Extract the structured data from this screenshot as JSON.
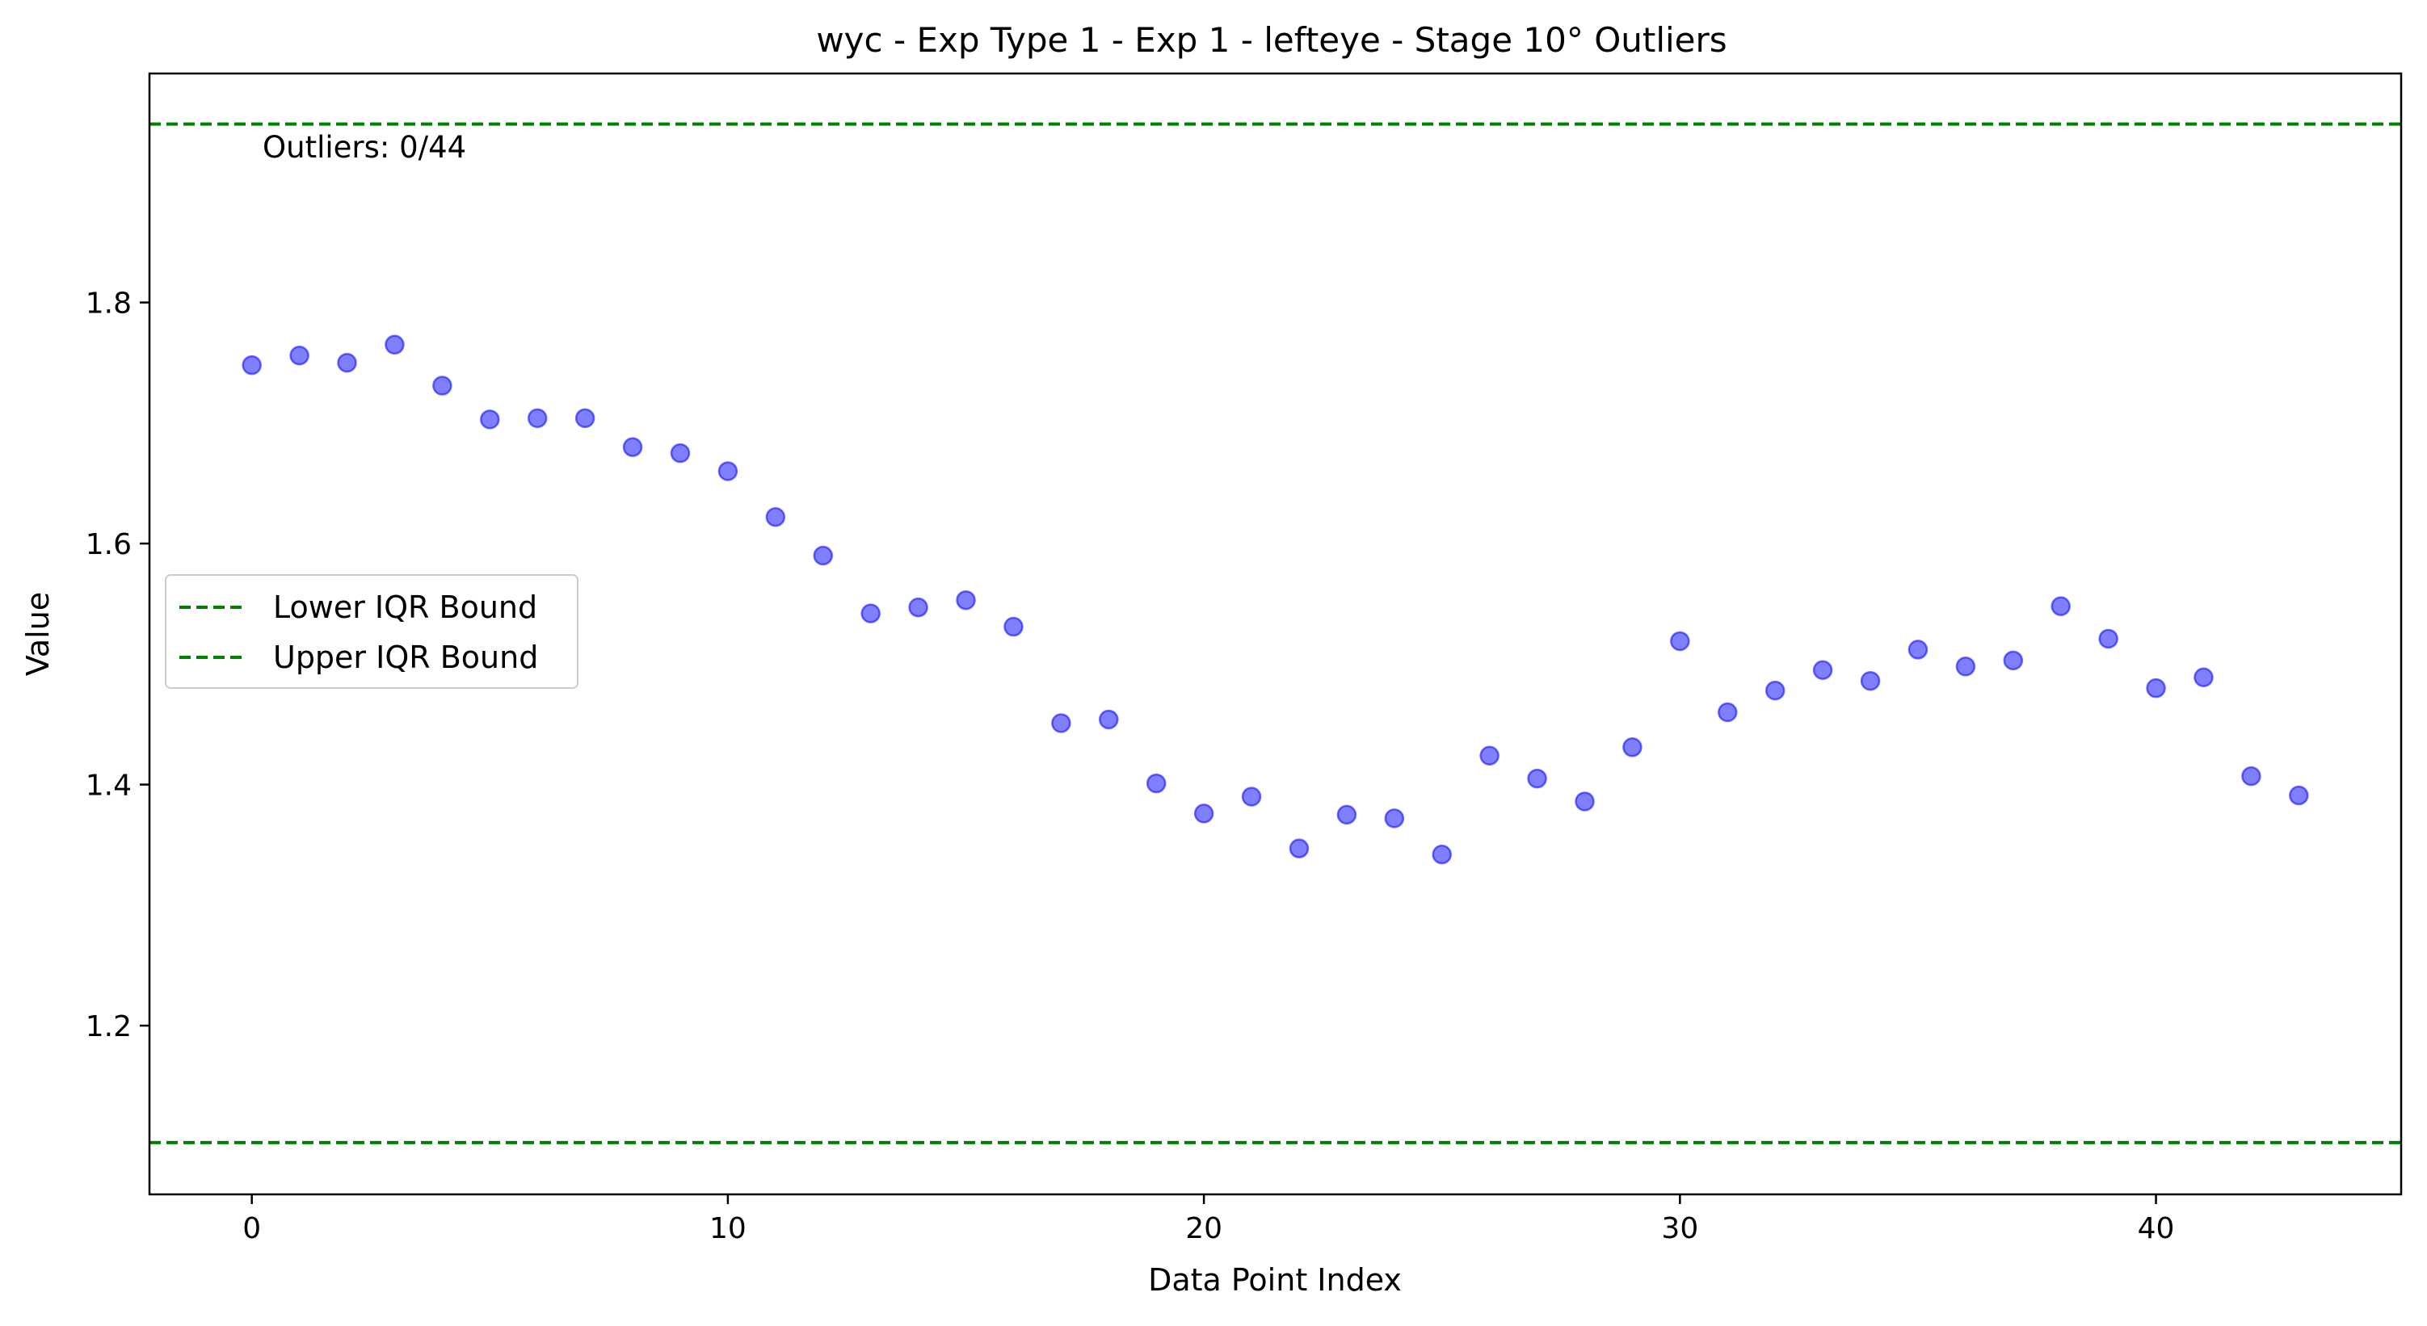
{
  "chart_data": {
    "type": "scatter",
    "title": "wyc - Exp Type 1 - Exp 1 - lefteye - Stage 10° Outliers",
    "xlabel": "Data Point Index",
    "ylabel": "Value",
    "xlim": [
      -2.15,
      45.15
    ],
    "ylim": [
      1.06,
      1.99
    ],
    "xticks": [
      0,
      10,
      20,
      30,
      40
    ],
    "xtick_labels": [
      "0",
      "10",
      "20",
      "30",
      "40"
    ],
    "yticks": [
      1.2,
      1.4,
      1.6,
      1.8
    ],
    "ytick_labels": [
      "1.2",
      "1.4",
      "1.6",
      "1.8"
    ],
    "grid": false,
    "x": [
      0,
      1,
      2,
      3,
      4,
      5,
      6,
      7,
      8,
      9,
      10,
      11,
      12,
      13,
      14,
      15,
      16,
      17,
      18,
      19,
      20,
      21,
      22,
      23,
      24,
      25,
      26,
      27,
      28,
      29,
      30,
      31,
      32,
      33,
      34,
      35,
      36,
      37,
      38,
      39,
      40,
      41,
      42,
      43
    ],
    "y": [
      1.748,
      1.756,
      1.75,
      1.765,
      1.731,
      1.703,
      1.704,
      1.704,
      1.68,
      1.675,
      1.66,
      1.622,
      1.59,
      1.542,
      1.547,
      1.553,
      1.531,
      1.451,
      1.454,
      1.401,
      1.376,
      1.39,
      1.347,
      1.375,
      1.372,
      1.342,
      1.424,
      1.405,
      1.386,
      1.431,
      1.519,
      1.46,
      1.478,
      1.495,
      1.486,
      1.512,
      1.498,
      1.503,
      1.548,
      1.521,
      1.48,
      1.489,
      1.407,
      1.391
    ],
    "point_color": "#0000ff",
    "reference_lines": [
      {
        "name": "Lower IQR Bound",
        "value": 1.103,
        "color": "#008000",
        "style": "dashed"
      },
      {
        "name": "Upper IQR Bound",
        "value": 1.948,
        "color": "#008000",
        "style": "dashed"
      }
    ],
    "annotation": "Outliers: 0/44",
    "legend": {
      "placement": "center-left",
      "entries": [
        "Lower IQR Bound",
        "Upper IQR Bound"
      ]
    }
  }
}
